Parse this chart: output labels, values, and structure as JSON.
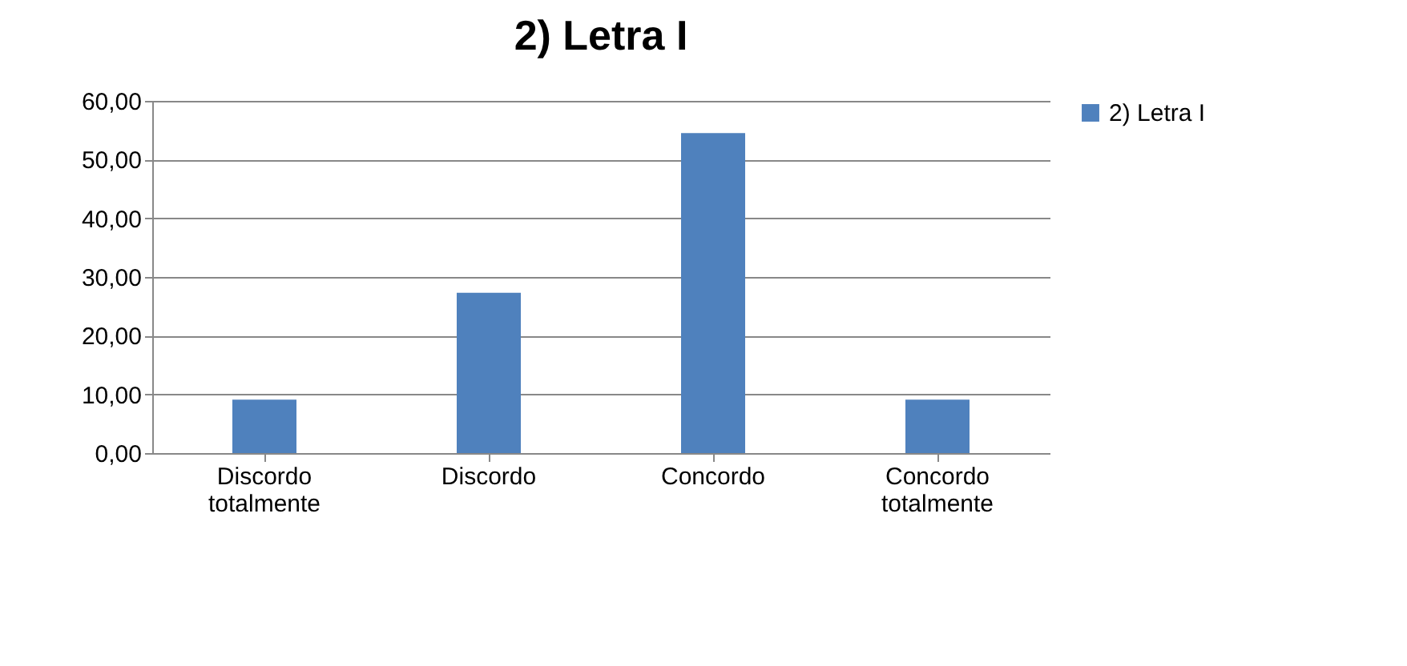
{
  "chart_data": {
    "type": "bar",
    "title": "2) Letra I",
    "categories": [
      "Discordo totalmente",
      "Discordo",
      "Concordo",
      "Concordo totalmente"
    ],
    "series": [
      {
        "name": "2) Letra I",
        "color": "#4f81bd",
        "values": [
          9.1,
          27.3,
          54.5,
          9.1
        ]
      }
    ],
    "ylim": [
      0,
      60
    ],
    "yticks": [
      {
        "value": 0,
        "label": "0,00"
      },
      {
        "value": 10,
        "label": "10,00"
      },
      {
        "value": 20,
        "label": "20,00"
      },
      {
        "value": 30,
        "label": "30,00"
      },
      {
        "value": 40,
        "label": "40,00"
      },
      {
        "value": 50,
        "label": "50,00"
      },
      {
        "value": 60,
        "label": "60,00"
      }
    ],
    "grid": "y",
    "legend": "right"
  }
}
